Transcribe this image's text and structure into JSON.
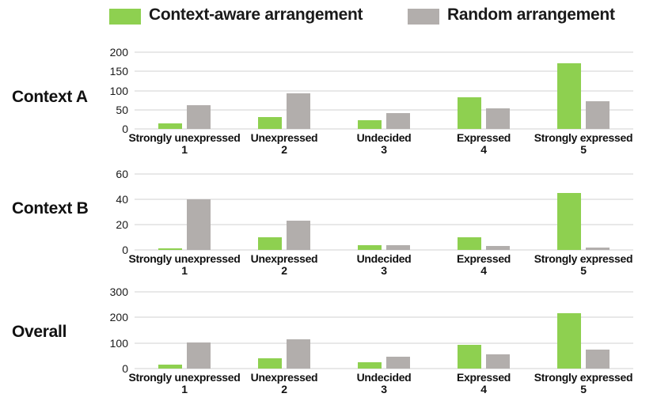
{
  "legend": {
    "items": [
      {
        "label": "Context-aware arrangement",
        "color": "#8ed050"
      },
      {
        "label": "Random arrangement",
        "color": "#b2aeac"
      }
    ]
  },
  "chart_data": [
    {
      "type": "bar",
      "title": "Context A",
      "categories": [
        "Strongly unexpressed",
        "Unexpressed",
        "Undecided",
        "Expressed",
        "Strongly expressed"
      ],
      "category_numbers": [
        "1",
        "2",
        "3",
        "4",
        "5"
      ],
      "series": [
        {
          "name": "Context-aware arrangement",
          "values": [
            15,
            30,
            22,
            82,
            172
          ]
        },
        {
          "name": "Random arrangement",
          "values": [
            62,
            92,
            42,
            54,
            72
          ]
        }
      ],
      "yticks": [
        0,
        50,
        100,
        150,
        200
      ],
      "ylim": [
        0,
        200
      ],
      "grid": true,
      "legend_position": "top"
    },
    {
      "type": "bar",
      "title": "Context B",
      "categories": [
        "Strongly unexpressed",
        "Unexpressed",
        "Undecided",
        "Expressed",
        "Strongly expressed"
      ],
      "category_numbers": [
        "1",
        "2",
        "3",
        "4",
        "5"
      ],
      "series": [
        {
          "name": "Context-aware arrangement",
          "values": [
            1,
            10,
            4,
            10,
            45
          ]
        },
        {
          "name": "Random arrangement",
          "values": [
            40,
            23,
            4,
            3,
            2
          ]
        }
      ],
      "yticks": [
        0,
        20,
        40,
        60
      ],
      "ylim": [
        0,
        60
      ],
      "grid": true,
      "legend_position": "top"
    },
    {
      "type": "bar",
      "title": "Overall",
      "categories": [
        "Strongly unexpressed",
        "Unexpressed",
        "Undecided",
        "Expressed",
        "Strongly expressed"
      ],
      "category_numbers": [
        "1",
        "2",
        "3",
        "4",
        "5"
      ],
      "series": [
        {
          "name": "Context-aware arrangement",
          "values": [
            16,
            40,
            26,
            92,
            217
          ]
        },
        {
          "name": "Random arrangement",
          "values": [
            102,
            115,
            46,
            57,
            74
          ]
        }
      ],
      "yticks": [
        0,
        100,
        200,
        300
      ],
      "ylim": [
        0,
        300
      ],
      "grid": true,
      "legend_position": "top"
    }
  ]
}
